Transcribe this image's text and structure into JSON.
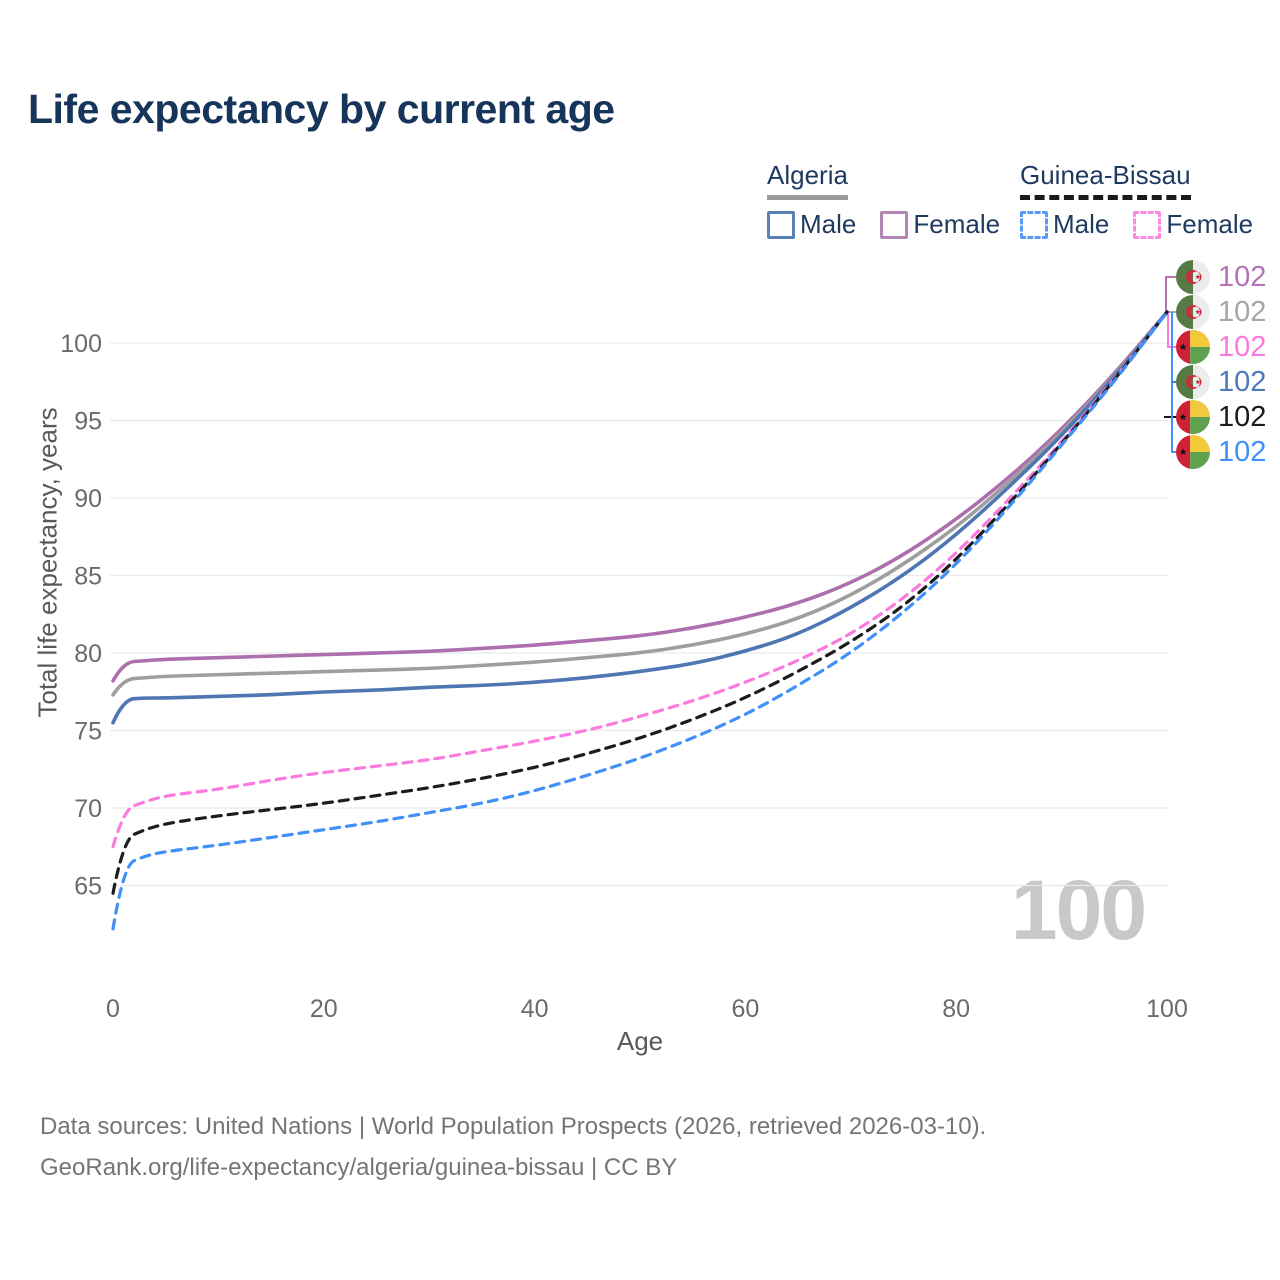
{
  "title": "Life expectancy by current age",
  "legend": {
    "groups": [
      {
        "name": "Algeria",
        "underline": "solid",
        "underline_color": "#9a9a9a",
        "items": [
          {
            "label": "Male",
            "swatch_color": "#5b82b8",
            "dashed": false
          },
          {
            "label": "Female",
            "swatch_color": "#b286b2",
            "dashed": false
          }
        ]
      },
      {
        "name": "Guinea-Bissau",
        "underline": "dashed",
        "underline_color": "#1a1a1a",
        "items": [
          {
            "label": "Male",
            "swatch_color": "#5b9bf8",
            "dashed": true
          },
          {
            "label": "Female",
            "swatch_color": "#fb8ae0",
            "dashed": true
          }
        ]
      }
    ]
  },
  "chart_data": {
    "type": "line",
    "title": "Life expectancy by current age",
    "xlabel": "Age",
    "ylabel": "Total life expectancy, years",
    "x_ticks": [
      0,
      20,
      40,
      60,
      80,
      100
    ],
    "y_ticks": [
      65,
      70,
      75,
      80,
      85,
      90,
      95,
      100
    ],
    "xlim": [
      0,
      100
    ],
    "ylim": [
      61,
      103.5
    ],
    "grid": "horizontal",
    "legend_position": "top-right",
    "watermark": "100",
    "x": [
      0,
      1,
      3,
      5,
      10,
      15,
      20,
      25,
      30,
      35,
      40,
      45,
      50,
      55,
      60,
      65,
      70,
      75,
      80,
      85,
      90,
      95,
      100
    ],
    "series": [
      {
        "name": "Algeria Female",
        "country": "Algeria",
        "sex": "Female",
        "color": "#ad6fad",
        "dashed": false,
        "end_value": 102,
        "values": [
          78.2,
          79.4,
          79.5,
          79.6,
          79.7,
          79.8,
          79.9,
          80.0,
          80.1,
          80.3,
          80.5,
          80.8,
          81.1,
          81.6,
          82.3,
          83.2,
          84.5,
          86.3,
          88.6,
          91.3,
          94.4,
          98.0,
          102
        ]
      },
      {
        "name": "Algeria Both sexes",
        "country": "Algeria",
        "sex": "All",
        "color": "#9e9e9e",
        "dashed": false,
        "end_value": 102,
        "values": [
          77.3,
          78.3,
          78.4,
          78.5,
          78.6,
          78.7,
          78.8,
          78.9,
          79.0,
          79.2,
          79.4,
          79.7,
          80.0,
          80.5,
          81.2,
          82.2,
          83.7,
          85.7,
          88.1,
          91.0,
          94.2,
          97.9,
          102
        ]
      },
      {
        "name": "Algeria Male",
        "country": "Algeria",
        "sex": "Male",
        "color": "#4d76b3",
        "dashed": false,
        "end_value": 102,
        "values": [
          75.5,
          77.0,
          77.1,
          77.1,
          77.2,
          77.3,
          77.5,
          77.6,
          77.8,
          77.9,
          78.1,
          78.4,
          78.8,
          79.3,
          80.1,
          81.2,
          82.9,
          85.0,
          87.6,
          90.7,
          94.0,
          97.8,
          102
        ]
      },
      {
        "name": "Guinea-Bissau Female",
        "country": "Guinea-Bissau",
        "sex": "Female",
        "color": "#fb7ade",
        "dashed": true,
        "end_value": 102,
        "values": [
          67.5,
          69.9,
          70.4,
          70.8,
          71.2,
          71.8,
          72.3,
          72.7,
          73.1,
          73.7,
          74.3,
          75.0,
          75.9,
          76.9,
          78.1,
          79.5,
          81.2,
          83.5,
          86.4,
          89.9,
          93.6,
          97.7,
          102
        ]
      },
      {
        "name": "Guinea-Bissau Both sexes",
        "country": "Guinea-Bissau",
        "sex": "All",
        "color": "#1c1c1c",
        "dashed": true,
        "end_value": 102,
        "values": [
          64.5,
          68.0,
          68.6,
          69.0,
          69.5,
          69.9,
          70.3,
          70.8,
          71.3,
          71.9,
          72.6,
          73.5,
          74.5,
          75.7,
          77.1,
          78.8,
          80.7,
          83.0,
          86.0,
          89.6,
          93.5,
          97.6,
          102
        ]
      },
      {
        "name": "Guinea-Bissau Male",
        "country": "Guinea-Bissau",
        "sex": "Male",
        "color": "#4190f7",
        "dashed": true,
        "end_value": 102,
        "values": [
          62.2,
          66.3,
          66.9,
          67.2,
          67.6,
          68.1,
          68.6,
          69.1,
          69.7,
          70.3,
          71.1,
          72.1,
          73.2,
          74.5,
          76.0,
          77.9,
          80.0,
          82.6,
          85.7,
          89.4,
          93.4,
          97.5,
          102
        ]
      }
    ]
  },
  "end_labels": [
    {
      "flag": "algeria",
      "value": "102",
      "color": "#b473b4"
    },
    {
      "flag": "algeria",
      "value": "102",
      "color": "#a6a6a6"
    },
    {
      "flag": "guinea-bissau",
      "value": "102",
      "color": "#fb7ade"
    },
    {
      "flag": "algeria",
      "value": "102",
      "color": "#4e79bd"
    },
    {
      "flag": "guinea-bissau",
      "value": "102",
      "color": "#1c1c1c"
    },
    {
      "flag": "guinea-bissau",
      "value": "102",
      "color": "#4190f7"
    }
  ],
  "footer": {
    "line1": "Data sources: United Nations | World Population Prospects (2026, retrieved 2026-03-10).",
    "line2": "GeoRank.org/life-expectancy/algeria/guinea-bissau | CC BY"
  }
}
